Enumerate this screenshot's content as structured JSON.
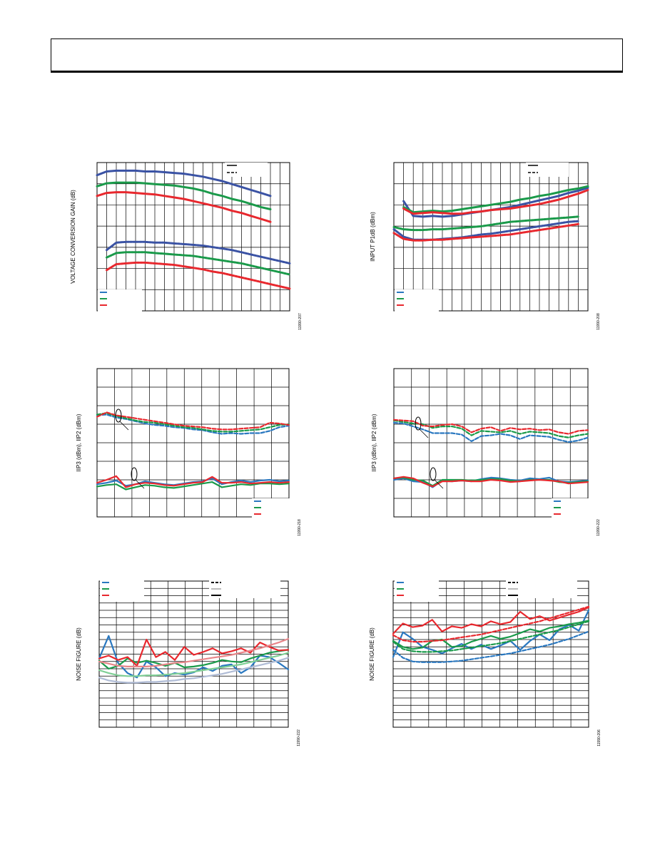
{
  "page": {
    "header_text": ""
  },
  "chart_data": [
    {
      "type": "line",
      "ylabel": "VOLTAGE CONVERSION GAIN (dB)",
      "side_code": "11990-207",
      "x": [
        0,
        1,
        2,
        3,
        4,
        5,
        6,
        7,
        8,
        9,
        10,
        11,
        12,
        13,
        14,
        15,
        16,
        17,
        18,
        19,
        20
      ],
      "ylim": [
        0,
        200
      ],
      "series": [
        {
          "color": "#3a52a4",
          "style": "solid",
          "y": [
            183,
            188,
            189,
            189,
            189,
            188,
            188,
            187,
            186,
            185,
            183,
            181,
            178,
            175,
            171,
            167,
            163,
            159,
            155,
            null,
            null
          ]
        },
        {
          "color": "#1a9a4a",
          "style": "solid",
          "y": [
            168,
            172,
            173,
            173,
            173,
            172,
            171,
            170,
            169,
            167,
            165,
            162,
            158,
            155,
            151,
            148,
            144,
            140,
            137,
            null,
            null
          ]
        },
        {
          "color": "#e8282e",
          "style": "solid",
          "y": [
            155,
            159,
            160,
            160,
            159,
            158,
            157,
            155,
            153,
            151,
            148,
            145,
            142,
            139,
            135,
            132,
            128,
            124,
            120,
            null,
            null
          ]
        },
        {
          "color": "#3a52a4",
          "style": "dashed",
          "y": [
            null,
            82,
            92,
            93,
            93,
            93,
            92,
            92,
            91,
            90,
            89,
            88,
            86,
            84,
            82,
            79,
            76,
            73,
            70,
            67,
            64
          ]
        },
        {
          "color": "#1a9a4a",
          "style": "dashed",
          "y": [
            null,
            72,
            78,
            79,
            79,
            79,
            78,
            77,
            76,
            75,
            74,
            72,
            70,
            68,
            66,
            64,
            61,
            58,
            55,
            52,
            49
          ]
        },
        {
          "color": "#e8282e",
          "style": "dashed",
          "y": [
            null,
            55,
            63,
            64,
            65,
            65,
            64,
            63,
            62,
            60,
            58,
            56,
            53,
            51,
            48,
            45,
            42,
            39,
            36,
            33,
            30
          ]
        }
      ]
    },
    {
      "type": "line",
      "ylabel": "INPUT P1dB (dBm)",
      "side_code": "11990-208",
      "x": [
        0,
        1,
        2,
        3,
        4,
        5,
        6,
        7,
        8,
        9,
        10,
        11,
        12,
        13,
        14,
        15,
        16,
        17,
        18,
        19,
        20
      ],
      "ylim": [
        0,
        200
      ],
      "series": [
        {
          "color": "#3a52a4",
          "style": "solid",
          "y": [
            null,
            148,
            128,
            127,
            128,
            127,
            128,
            130,
            132,
            134,
            136,
            138,
            140,
            143,
            146,
            149,
            152,
            155,
            159,
            162,
            166
          ]
        },
        {
          "color": "#1a9a4a",
          "style": "solid",
          "y": [
            null,
            140,
            133,
            134,
            135,
            134,
            135,
            137,
            139,
            141,
            143,
            145,
            147,
            150,
            152,
            155,
            157,
            160,
            163,
            165,
            168
          ]
        },
        {
          "color": "#e8282e",
          "style": "solid",
          "y": [
            null,
            138,
            131,
            132,
            133,
            132,
            131,
            131,
            133,
            134,
            136,
            137,
            138,
            140,
            142,
            144,
            147,
            150,
            154,
            158,
            163
          ]
        },
        {
          "color": "#3a52a4",
          "style": "dashed",
          "y": [
            110,
            100,
            96,
            96,
            96,
            97,
            98,
            99,
            101,
            103,
            104,
            106,
            108,
            110,
            112,
            114,
            116,
            118,
            120,
            121,
            null
          ]
        },
        {
          "color": "#1a9a4a",
          "style": "dashed",
          "y": [
            113,
            110,
            109,
            109,
            110,
            110,
            111,
            112,
            113,
            114,
            116,
            118,
            120,
            121,
            122,
            123,
            124,
            125,
            126,
            127,
            null
          ]
        },
        {
          "color": "#e8282e",
          "style": "dashed",
          "y": [
            105,
            97,
            95,
            95,
            96,
            96,
            97,
            98,
            99,
            100,
            101,
            102,
            103,
            105,
            107,
            109,
            111,
            113,
            115,
            117,
            null
          ]
        }
      ]
    },
    {
      "type": "line",
      "ylabel": "IIP3 (dBm), IIP2 (dBm)",
      "side_code": "11990-218",
      "x": [
        0,
        1,
        2,
        3,
        4,
        5,
        6,
        7,
        8,
        9,
        10,
        11,
        12,
        13,
        14,
        15,
        16,
        17,
        18,
        19,
        20
      ],
      "ylim": [
        0,
        200
      ],
      "series": [
        {
          "color": "#2a78c0",
          "style": "dashed",
          "y": [
            137,
            138,
            134,
            132,
            129,
            126,
            124,
            123,
            121,
            120,
            118,
            117,
            114,
            112,
            113,
            112,
            113,
            113,
            116,
            121,
            123
          ]
        },
        {
          "color": "#1a9a4a",
          "style": "dashed",
          "y": [
            138,
            140,
            136,
            133,
            130,
            128,
            127,
            125,
            123,
            121,
            120,
            118,
            116,
            115,
            115,
            116,
            117,
            118,
            121,
            124,
            125
          ]
        },
        {
          "color": "#e8282e",
          "style": "dashed",
          "y": [
            135,
            141,
            137,
            135,
            133,
            131,
            129,
            127,
            125,
            123,
            122,
            121,
            119,
            118,
            118,
            119,
            120,
            121,
            127,
            126,
            124
          ]
        },
        {
          "color": "#2a78c0",
          "style": "solid",
          "y": [
            44,
            46,
            49,
            42,
            44,
            48,
            46,
            44,
            43,
            45,
            47,
            48,
            52,
            44,
            47,
            49,
            47,
            49,
            50,
            48,
            49
          ]
        },
        {
          "color": "#1a9a4a",
          "style": "solid",
          "y": [
            41,
            43,
            44,
            37,
            40,
            43,
            42,
            40,
            39,
            41,
            43,
            45,
            47,
            40,
            42,
            44,
            43,
            45,
            45,
            44,
            45
          ]
        },
        {
          "color": "#e8282e",
          "style": "solid",
          "y": [
            46,
            50,
            55,
            40,
            44,
            46,
            45,
            43,
            42,
            44,
            46,
            47,
            54,
            46,
            46,
            47,
            45,
            46,
            47,
            46,
            47
          ]
        }
      ]
    },
    {
      "type": "line",
      "ylabel": "IIP3 (dBm), IIP2 (dBm)",
      "side_code": "11990-222",
      "x": [
        0,
        1,
        2,
        3,
        4,
        5,
        6,
        7,
        8,
        9,
        10,
        11,
        12,
        13,
        14,
        15,
        16,
        17,
        18,
        19,
        20
      ],
      "ylim": [
        0,
        200
      ],
      "series": [
        {
          "color": "#2a78c0",
          "style": "dashed",
          "y": [
            127,
            126,
            122,
            118,
            113,
            113,
            113,
            111,
            102,
            109,
            110,
            112,
            110,
            105,
            110,
            109,
            108,
            104,
            101,
            103,
            107
          ]
        },
        {
          "color": "#1a9a4a",
          "style": "dashed",
          "y": [
            130,
            128,
            126,
            125,
            120,
            122,
            122,
            119,
            110,
            116,
            115,
            114,
            116,
            112,
            115,
            114,
            113,
            109,
            107,
            110,
            112
          ]
        },
        {
          "color": "#e8282e",
          "style": "dashed",
          "y": [
            131,
            130,
            129,
            123,
            122,
            124,
            125,
            122,
            114,
            119,
            121,
            116,
            120,
            118,
            119,
            117,
            118,
            114,
            112,
            116,
            117
          ]
        },
        {
          "color": "#2a78c0",
          "style": "solid",
          "y": [
            50,
            52,
            48,
            47,
            40,
            49,
            48,
            49,
            48,
            51,
            53,
            52,
            50,
            49,
            52,
            51,
            53,
            48,
            47,
            48,
            49
          ]
        },
        {
          "color": "#1a9a4a",
          "style": "solid",
          "y": [
            52,
            53,
            50,
            49,
            42,
            50,
            50,
            50,
            49,
            50,
            51,
            51,
            49,
            48,
            50,
            50,
            50,
            47,
            46,
            47,
            48
          ]
        },
        {
          "color": "#e8282e",
          "style": "solid",
          "y": [
            52,
            54,
            52,
            46,
            41,
            48,
            48,
            49,
            48,
            48,
            50,
            49,
            47,
            48,
            49,
            50,
            49,
            48,
            45,
            46,
            47
          ]
        }
      ]
    },
    {
      "type": "line",
      "ylabel": "NOISE FIGURE (dB)",
      "side_code": "11990-222",
      "x": [
        0,
        1,
        2,
        3,
        4,
        5,
        6,
        7,
        8,
        9,
        10,
        11,
        12,
        13,
        14,
        15,
        16,
        17,
        18,
        19,
        20
      ],
      "ylim": [
        0,
        200
      ],
      "series": [
        {
          "color": "#2a78c0",
          "style": "solid",
          "y": [
            94,
            125,
            88,
            74,
            68,
            90,
            82,
            70,
            74,
            72,
            75,
            82,
            77,
            84,
            86,
            74,
            82,
            98,
            96,
            88,
            79
          ]
        },
        {
          "color": "#1a9a4a",
          "style": "solid",
          "y": [
            91,
            80,
            84,
            94,
            88,
            91,
            88,
            84,
            88,
            82,
            83,
            85,
            88,
            92,
            90,
            89,
            94,
            98,
            102,
            104,
            106
          ]
        },
        {
          "color": "#e8282e",
          "style": "solid",
          "y": [
            94,
            98,
            92,
            96,
            84,
            120,
            96,
            103,
            92,
            110,
            99,
            103,
            108,
            101,
            104,
            108,
            102,
            116,
            110,
            105,
            106
          ]
        },
        {
          "color": "#e8868a",
          "style": "solid",
          "y": [
            90,
            87,
            84,
            83,
            83,
            83,
            84,
            86,
            88,
            89,
            91,
            93,
            95,
            97,
            99,
            102,
            105,
            108,
            112,
            116,
            121
          ]
        },
        {
          "color": "#b0bcd6",
          "style": "solid",
          "y": [
            68,
            64,
            62,
            61,
            61,
            62,
            62,
            63,
            64,
            66,
            67,
            69,
            71,
            73,
            76,
            79,
            82,
            85,
            88,
            91,
            95
          ]
        },
        {
          "color": "#7fcf95",
          "style": "solid",
          "y": [
            78,
            74,
            71,
            70,
            70,
            71,
            71,
            72,
            73,
            74,
            76,
            78,
            80,
            82,
            84,
            86,
            89,
            92,
            95,
            98,
            102
          ]
        }
      ]
    },
    {
      "type": "line",
      "ylabel": "NOISE FIGURE (dB)",
      "side_code": "11990-206",
      "x": [
        0,
        1,
        2,
        3,
        4,
        5,
        6,
        7,
        8,
        9,
        10,
        11,
        12,
        13,
        14,
        15,
        16,
        17,
        18,
        19,
        20
      ],
      "ylim": [
        0,
        200
      ],
      "series": [
        {
          "color": "#2a78c0",
          "style": "solid",
          "y": [
            96,
            130,
            121,
            110,
            106,
            101,
            108,
            114,
            107,
            113,
            107,
            112,
            118,
            106,
            118,
            127,
            119,
            134,
            140,
            132,
            160
          ]
        },
        {
          "color": "#1a9a4a",
          "style": "solid",
          "y": [
            118,
            110,
            107,
            109,
            118,
            120,
            110,
            111,
            117,
            121,
            125,
            121,
            124,
            129,
            134,
            131,
            136,
            138,
            141,
            143,
            146
          ]
        },
        {
          "color": "#e8282e",
          "style": "solid",
          "y": [
            128,
            142,
            137,
            139,
            147,
            131,
            138,
            136,
            141,
            138,
            145,
            141,
            144,
            158,
            148,
            152,
            146,
            150,
            154,
            158,
            164
          ]
        },
        {
          "color": "#2a78c0",
          "style": "dashed",
          "y": [
            106,
            95,
            90,
            89,
            89,
            89,
            90,
            91,
            93,
            95,
            97,
            99,
            101,
            104,
            107,
            110,
            113,
            117,
            121,
            126,
            131
          ]
        },
        {
          "color": "#1a9a4a",
          "style": "dashed",
          "y": [
            117,
            107,
            104,
            103,
            103,
            104,
            105,
            107,
            109,
            111,
            113,
            115,
            118,
            121,
            124,
            127,
            130,
            133,
            137,
            141,
            145
          ]
        },
        {
          "color": "#e8282e",
          "style": "dashed",
          "y": [
            126,
            119,
            117,
            117,
            118,
            119,
            121,
            123,
            125,
            127,
            130,
            133,
            136,
            139,
            142,
            145,
            149,
            153,
            157,
            161,
            165
          ]
        }
      ]
    }
  ]
}
